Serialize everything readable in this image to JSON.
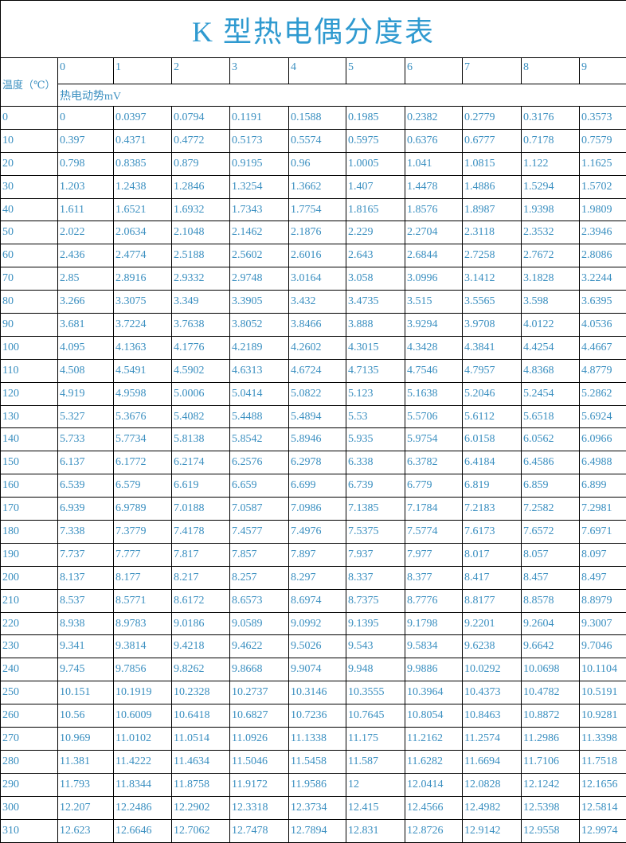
{
  "title": "K 型热电偶分度表",
  "table": {
    "row_header": "温度（℃）",
    "unit_label": "热电动势mV",
    "columns": [
      "0",
      "1",
      "2",
      "3",
      "4",
      "5",
      "6",
      "7",
      "8",
      "9"
    ],
    "rows": [
      [
        "0",
        "0",
        "0.0397",
        "0.0794",
        "0.1191",
        "0.1588",
        "0.1985",
        "0.2382",
        "0.2779",
        "0.3176",
        "0.3573"
      ],
      [
        "10",
        "0.397",
        "0.4371",
        "0.4772",
        "0.5173",
        "0.5574",
        "0.5975",
        "0.6376",
        "0.6777",
        "0.7178",
        "0.7579"
      ],
      [
        "20",
        "0.798",
        "0.8385",
        "0.879",
        "0.9195",
        "0.96",
        "1.0005",
        "1.041",
        "1.0815",
        "1.122",
        "1.1625"
      ],
      [
        "30",
        "1.203",
        "1.2438",
        "1.2846",
        "1.3254",
        "1.3662",
        "1.407",
        "1.4478",
        "1.4886",
        "1.5294",
        "1.5702"
      ],
      [
        "40",
        "1.611",
        "1.6521",
        "1.6932",
        "1.7343",
        "1.7754",
        "1.8165",
        "1.8576",
        "1.8987",
        "1.9398",
        "1.9809"
      ],
      [
        "50",
        "2.022",
        "2.0634",
        "2.1048",
        "2.1462",
        "2.1876",
        "2.229",
        "2.2704",
        "2.3118",
        "2.3532",
        "2.3946"
      ],
      [
        "60",
        "2.436",
        "2.4774",
        "2.5188",
        "2.5602",
        "2.6016",
        "2.643",
        "2.6844",
        "2.7258",
        "2.7672",
        "2.8086"
      ],
      [
        "70",
        "2.85",
        "2.8916",
        "2.9332",
        "2.9748",
        "3.0164",
        "3.058",
        "3.0996",
        "3.1412",
        "3.1828",
        "3.2244"
      ],
      [
        "80",
        "3.266",
        "3.3075",
        "3.349",
        "3.3905",
        "3.432",
        "3.4735",
        "3.515",
        "3.5565",
        "3.598",
        "3.6395"
      ],
      [
        "90",
        "3.681",
        "3.7224",
        "3.7638",
        "3.8052",
        "3.8466",
        "3.888",
        "3.9294",
        "3.9708",
        "4.0122",
        "4.0536"
      ],
      [
        "100",
        "4.095",
        "4.1363",
        "4.1776",
        "4.2189",
        "4.2602",
        "4.3015",
        "4.3428",
        "4.3841",
        "4.4254",
        "4.4667"
      ],
      [
        "110",
        "4.508",
        "4.5491",
        "4.5902",
        "4.6313",
        "4.6724",
        "4.7135",
        "4.7546",
        "4.7957",
        "4.8368",
        "4.8779"
      ],
      [
        "120",
        "4.919",
        "4.9598",
        "5.0006",
        "5.0414",
        "5.0822",
        "5.123",
        "5.1638",
        "5.2046",
        "5.2454",
        "5.2862"
      ],
      [
        "130",
        "5.327",
        "5.3676",
        "5.4082",
        "5.4488",
        "5.4894",
        "5.53",
        "5.5706",
        "5.6112",
        "5.6518",
        "5.6924"
      ],
      [
        "140",
        "5.733",
        "5.7734",
        "5.8138",
        "5.8542",
        "5.8946",
        "5.935",
        "5.9754",
        "6.0158",
        "6.0562",
        "6.0966"
      ],
      [
        "150",
        "6.137",
        "6.1772",
        "6.2174",
        "6.2576",
        "6.2978",
        "6.338",
        "6.3782",
        "6.4184",
        "6.4586",
        "6.4988"
      ],
      [
        "160",
        "6.539",
        "6.579",
        "6.619",
        "6.659",
        "6.699",
        "6.739",
        "6.779",
        "6.819",
        "6.859",
        "6.899"
      ],
      [
        "170",
        "6.939",
        "6.9789",
        "7.0188",
        "7.0587",
        "7.0986",
        "7.1385",
        "7.1784",
        "7.2183",
        "7.2582",
        "7.2981"
      ],
      [
        "180",
        "7.338",
        "7.3779",
        "7.4178",
        "7.4577",
        "7.4976",
        "7.5375",
        "7.5774",
        "7.6173",
        "7.6572",
        "7.6971"
      ],
      [
        "190",
        "7.737",
        "7.777",
        "7.817",
        "7.857",
        "7.897",
        "7.937",
        "7.977",
        "8.017",
        "8.057",
        "8.097"
      ],
      [
        "200",
        "8.137",
        "8.177",
        "8.217",
        "8.257",
        "8.297",
        "8.337",
        "8.377",
        "8.417",
        "8.457",
        "8.497"
      ],
      [
        "210",
        "8.537",
        "8.5771",
        "8.6172",
        "8.6573",
        "8.6974",
        "8.7375",
        "8.7776",
        "8.8177",
        "8.8578",
        "8.8979"
      ],
      [
        "220",
        "8.938",
        "8.9783",
        "9.0186",
        "9.0589",
        "9.0992",
        "9.1395",
        "9.1798",
        "9.2201",
        "9.2604",
        "9.3007"
      ],
      [
        "230",
        "9.341",
        "9.3814",
        "9.4218",
        "9.4622",
        "9.5026",
        "9.543",
        "9.5834",
        "9.6238",
        "9.6642",
        "9.7046"
      ],
      [
        "240",
        "9.745",
        "9.7856",
        "9.8262",
        "9.8668",
        "9.9074",
        "9.948",
        "9.9886",
        "10.0292",
        "10.0698",
        "10.1104"
      ],
      [
        "250",
        "10.151",
        "10.1919",
        "10.2328",
        "10.2737",
        "10.3146",
        "10.3555",
        "10.3964",
        "10.4373",
        "10.4782",
        "10.5191"
      ],
      [
        "260",
        "10.56",
        "10.6009",
        "10.6418",
        "10.6827",
        "10.7236",
        "10.7645",
        "10.8054",
        "10.8463",
        "10.8872",
        "10.9281"
      ],
      [
        "270",
        "10.969",
        "11.0102",
        "11.0514",
        "11.0926",
        "11.1338",
        "11.175",
        "11.2162",
        "11.2574",
        "11.2986",
        "11.3398"
      ],
      [
        "280",
        "11.381",
        "11.4222",
        "11.4634",
        "11.5046",
        "11.5458",
        "11.587",
        "11.6282",
        "11.6694",
        "11.7106",
        "11.7518"
      ],
      [
        "290",
        "11.793",
        "11.8344",
        "11.8758",
        "11.9172",
        "11.9586",
        "12",
        "12.0414",
        "12.0828",
        "12.1242",
        "12.1656"
      ],
      [
        "300",
        "12.207",
        "12.2486",
        "12.2902",
        "12.3318",
        "12.3734",
        "12.415",
        "12.4566",
        "12.4982",
        "12.5398",
        "12.5814"
      ],
      [
        "310",
        "12.623",
        "12.6646",
        "12.7062",
        "12.7478",
        "12.7894",
        "12.831",
        "12.8726",
        "12.9142",
        "12.9558",
        "12.9974"
      ]
    ]
  }
}
